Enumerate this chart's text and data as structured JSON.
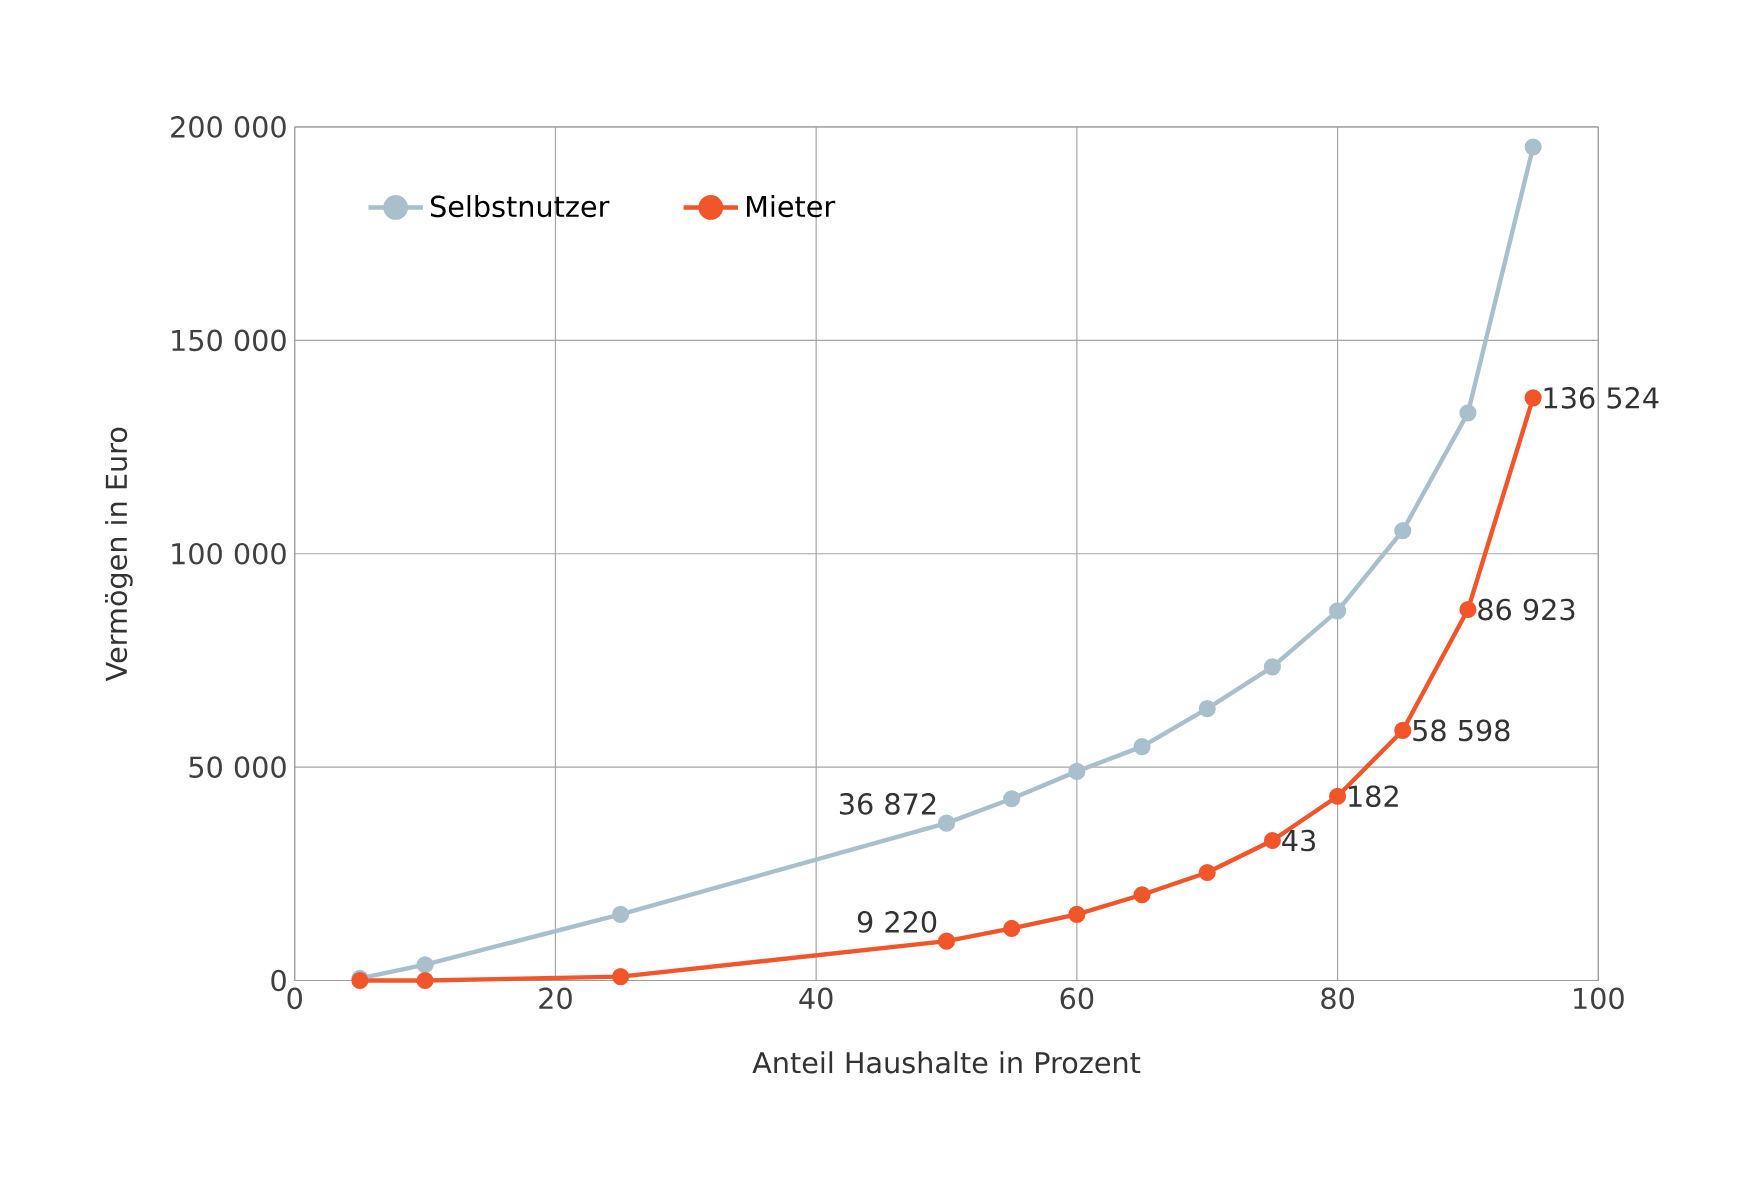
{
  "chart_data": {
    "type": "line",
    "xlabel": "Anteil Haushalte in Prozent",
    "ylabel": "Vermögen in Euro",
    "x": [
      5,
      10,
      25,
      50,
      55,
      60,
      65,
      70,
      75,
      80,
      85,
      90,
      95
    ],
    "series": [
      {
        "name": "Selbstnutzer",
        "color": "#a9bfcc",
        "values": [
          500,
          3700,
          15500,
          36872,
          42600,
          49000,
          54800,
          63700,
          73500,
          86600,
          105400,
          133000,
          195300
        ]
      },
      {
        "name": "Mieter",
        "color": "#f0562a",
        "values": [
          0,
          0,
          900,
          9220,
          12200,
          15500,
          20100,
          25300,
          32800,
          43182,
          58598,
          86923,
          136524
        ]
      }
    ],
    "annotations": [
      {
        "text": "36 872",
        "x": 50,
        "y": 36872
      },
      {
        "text": "9 220",
        "x": 50,
        "y": 9220
      },
      {
        "text": "43",
        "x": 75,
        "y": 32800
      },
      {
        "text": "182",
        "x": 80,
        "y": 43182
      },
      {
        "text": "58 598",
        "x": 85,
        "y": 58598
      },
      {
        "text": "86 923",
        "x": 90,
        "y": 86923
      },
      {
        "text": "136 524",
        "x": 95,
        "y": 136524
      }
    ],
    "xlim": [
      0,
      100
    ],
    "xticks": [
      0,
      20,
      40,
      60,
      80,
      100
    ],
    "ylim": [
      0,
      200000
    ],
    "yticks": [
      {
        "value": 0,
        "label": "0"
      },
      {
        "value": 50000,
        "label": "50 000"
      },
      {
        "value": 100000,
        "label": "100 000"
      },
      {
        "value": 150000,
        "label": "150 000"
      },
      {
        "value": 200000,
        "label": "200 000"
      }
    ],
    "grid": true,
    "legend": "top left",
    "marker": "circle",
    "line_style": "solid"
  }
}
